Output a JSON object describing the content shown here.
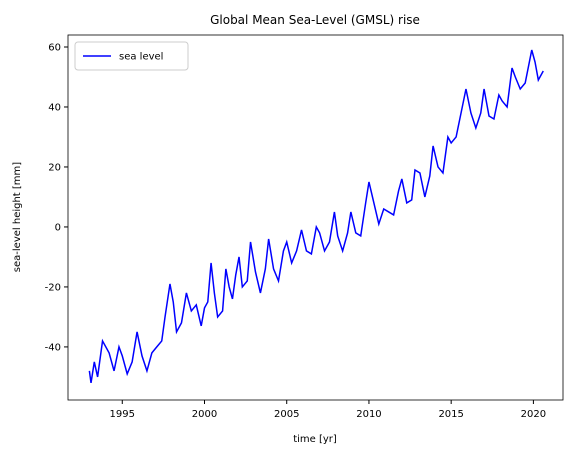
{
  "chart_data": {
    "type": "line",
    "title": "Global Mean Sea-Level (GMSL) rise",
    "xlabel": "time [yr]",
    "ylabel": "sea-level height [mm]",
    "x": [
      1993.0,
      1993.1,
      1993.3,
      1993.5,
      1993.8,
      1994.2,
      1994.5,
      1994.8,
      1995.0,
      1995.3,
      1995.6,
      1995.9,
      1996.2,
      1996.5,
      1996.8,
      1997.1,
      1997.4,
      1997.6,
      1997.9,
      1998.1,
      1998.3,
      1998.6,
      1998.9,
      1999.2,
      1999.5,
      1999.8,
      2000.0,
      2000.2,
      2000.4,
      2000.6,
      2000.8,
      2001.1,
      2001.3,
      2001.5,
      2001.7,
      2001.9,
      2002.1,
      2002.3,
      2002.6,
      2002.8,
      2003.1,
      2003.4,
      2003.7,
      2003.9,
      2004.2,
      2004.5,
      2004.8,
      2005.0,
      2005.3,
      2005.6,
      2005.9,
      2006.2,
      2006.5,
      2006.8,
      2007.0,
      2007.3,
      2007.6,
      2007.9,
      2008.1,
      2008.4,
      2008.7,
      2008.9,
      2009.2,
      2009.5,
      2009.8,
      2010.0,
      2010.3,
      2010.6,
      2010.9,
      2011.2,
      2011.5,
      2011.8,
      2012.0,
      2012.3,
      2012.6,
      2012.8,
      2013.1,
      2013.4,
      2013.7,
      2013.9,
      2014.2,
      2014.5,
      2014.8,
      2015.0,
      2015.3,
      2015.6,
      2015.9,
      2016.2,
      2016.5,
      2016.8,
      2017.0,
      2017.3,
      2017.6,
      2017.9,
      2018.1,
      2018.4,
      2018.7,
      2018.9,
      2019.2,
      2019.5,
      2019.9,
      2020.1,
      2020.3,
      2020.6
    ],
    "series": [
      {
        "name": "sea level",
        "color": "#0000ff",
        "values": [
          -48,
          -52,
          -45,
          -50,
          -38,
          -42,
          -48,
          -40,
          -43,
          -49,
          -45,
          -35,
          -43,
          -48,
          -42,
          -40,
          -38,
          -30,
          -19,
          -25,
          -35,
          -32,
          -22,
          -28,
          -26,
          -33,
          -27,
          -25,
          -12,
          -22,
          -30,
          -28,
          -14,
          -20,
          -24,
          -16,
          -10,
          -20,
          -18,
          -5,
          -15,
          -22,
          -14,
          -4,
          -14,
          -18,
          -8,
          -5,
          -12,
          -8,
          -1,
          -8,
          -9,
          0,
          -2,
          -8,
          -5,
          5,
          -3,
          -8,
          -2,
          5,
          -2,
          -3,
          8,
          15,
          8,
          1,
          6,
          5,
          4,
          12,
          16,
          8,
          9,
          19,
          18,
          10,
          17,
          27,
          20,
          18,
          30,
          28,
          30,
          38,
          46,
          38,
          33,
          38,
          46,
          37,
          36,
          44,
          42,
          40,
          53,
          50,
          46,
          48,
          59,
          55,
          49,
          52
        ]
      }
    ],
    "xlim": [
      1991.7,
      2021.8
    ],
    "ylim": [
      -57.7,
      64
    ],
    "xticks": [
      1995,
      2000,
      2005,
      2010,
      2015,
      2020
    ],
    "yticks": [
      -40,
      -20,
      0,
      20,
      40,
      60
    ],
    "legend": "upper left"
  }
}
